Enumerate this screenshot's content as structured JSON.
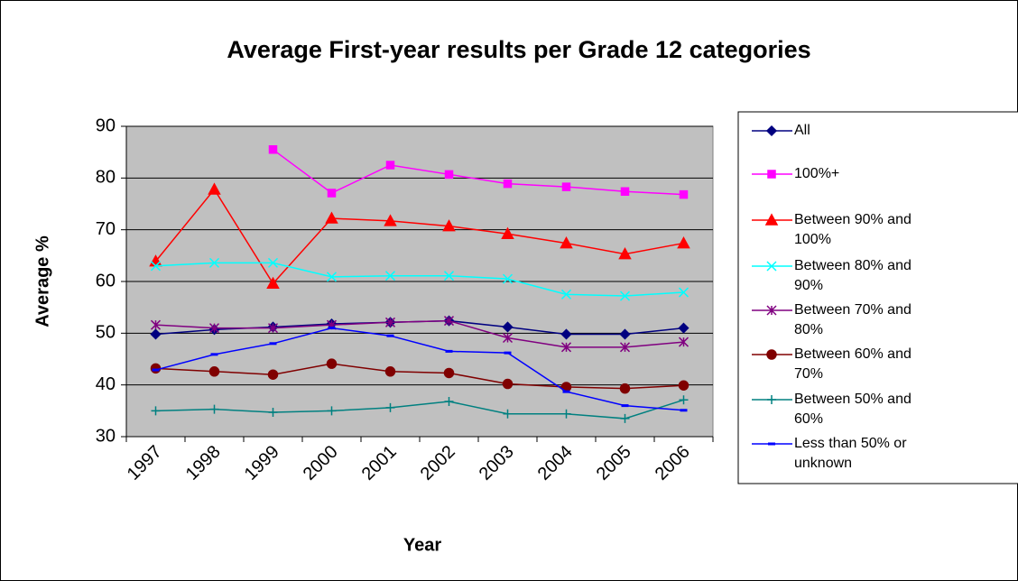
{
  "chart_data": {
    "type": "line",
    "title": "Average First-year results per Grade 12 categories",
    "x_label": "Year",
    "y_label": "Average %",
    "categories": [
      "1997",
      "1998",
      "1999",
      "2000",
      "2001",
      "2002",
      "2003",
      "2004",
      "2005",
      "2006"
    ],
    "ylim": [
      30,
      90
    ],
    "yticks": [
      30,
      40,
      50,
      60,
      70,
      80,
      90
    ],
    "grid": true,
    "legend": "right",
    "series": [
      {
        "name": "All",
        "color": "#000080",
        "marker": "diamond",
        "values": [
          49.8,
          50.7,
          51.2,
          51.8,
          52.1,
          52.4,
          51.2,
          49.8,
          49.8,
          51.0
        ]
      },
      {
        "name": "100%+",
        "color": "#ff00ff",
        "marker": "square",
        "values": [
          null,
          null,
          85.5,
          77.1,
          82.5,
          80.7,
          78.9,
          78.3,
          77.4,
          76.8
        ]
      },
      {
        "name": "Between 90% and 100%",
        "color": "#ff0000",
        "marker": "triangle",
        "values": [
          63.9,
          77.8,
          59.6,
          72.2,
          71.7,
          70.7,
          69.2,
          67.4,
          65.3,
          67.4
        ]
      },
      {
        "name": "Between 80% and 90%",
        "color": "#00ffff",
        "marker": "x",
        "values": [
          63.0,
          63.6,
          63.6,
          60.9,
          61.1,
          61.1,
          60.5,
          57.5,
          57.2,
          57.9
        ]
      },
      {
        "name": "Between 70% and 80%",
        "color": "#800080",
        "marker": "star",
        "values": [
          51.6,
          51.0,
          51.0,
          51.6,
          52.1,
          52.4,
          49.1,
          47.3,
          47.3,
          48.3
        ]
      },
      {
        "name": "Between 60% and 70%",
        "color": "#800000",
        "marker": "circle",
        "values": [
          43.2,
          42.6,
          42.0,
          44.1,
          42.6,
          42.3,
          40.2,
          39.6,
          39.3,
          39.9
        ]
      },
      {
        "name": "Between 50% and 60%",
        "color": "#008080",
        "marker": "plus",
        "values": [
          35.0,
          35.3,
          34.7,
          35.0,
          35.6,
          36.8,
          34.4,
          34.4,
          33.5,
          37.1
        ]
      },
      {
        "name": "Less than 50% or unknown",
        "color": "#0000ff",
        "marker": "dash",
        "values": [
          42.9,
          45.9,
          48.0,
          51.0,
          49.5,
          46.5,
          46.2,
          38.7,
          36.0,
          35.1
        ]
      }
    ]
  }
}
